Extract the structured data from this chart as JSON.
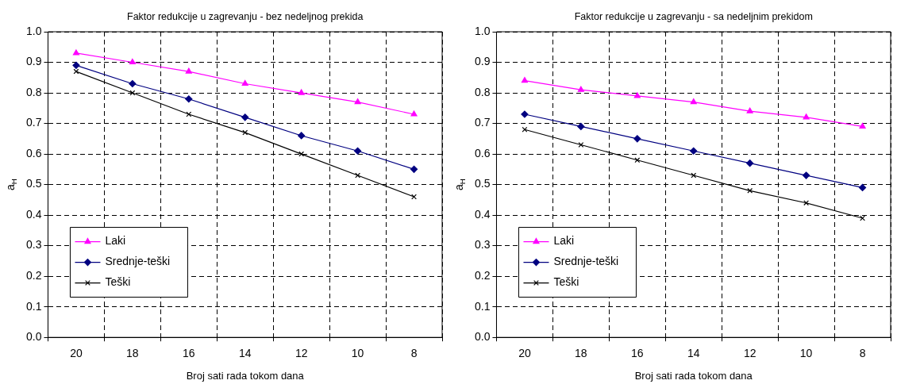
{
  "chart_data": [
    {
      "type": "line",
      "title": "Faktor redukcije u zagrevanju - bez nedeljnog prekida",
      "xlabel": "Broj sati rada tokom dana",
      "ylabel": "a$_{H}$",
      "categories": [
        "20",
        "18",
        "16",
        "14",
        "12",
        "10",
        "8"
      ],
      "ylim": [
        0,
        1
      ],
      "yticks": [
        {
          "value": 0,
          "label": "0.0"
        },
        {
          "value": 0.1,
          "label": "0.1"
        },
        {
          "value": 0.2,
          "label": "0.2"
        },
        {
          "value": 0.3,
          "label": "0.3"
        },
        {
          "value": 0.4,
          "label": "0.4"
        },
        {
          "value": 0.5,
          "label": "0.5"
        },
        {
          "value": 0.6,
          "label": "0.6"
        },
        {
          "value": 0.7,
          "label": "0.7"
        },
        {
          "value": 0.8,
          "label": "0.8"
        },
        {
          "value": 0.9,
          "label": "0.9"
        },
        {
          "value": 1,
          "label": "1.0"
        }
      ],
      "grid": true,
      "legend": "left",
      "line_style": "solid",
      "series": [
        {
          "name": "Laki",
          "color": "#ff00ff",
          "marker": "triangle",
          "values": [
            0.93,
            0.9,
            0.87,
            0.83,
            0.8,
            0.77,
            0.73
          ]
        },
        {
          "name": "Srednje-teški",
          "color": "#000080",
          "marker": "diamond",
          "values": [
            0.89,
            0.83,
            0.78,
            0.72,
            0.66,
            0.61,
            0.55
          ]
        },
        {
          "name": "Teški",
          "color": "#000000",
          "marker": "cross",
          "values": [
            0.87,
            0.8,
            0.73,
            0.67,
            0.6,
            0.53,
            0.46
          ]
        }
      ]
    },
    {
      "type": "line",
      "title": "Faktor redukcije u zagrevanju - sa nedeljnim prekidom",
      "xlabel": "Broj sati rada tokom dana",
      "ylabel": "a$_{H}$",
      "categories": [
        "20",
        "18",
        "16",
        "14",
        "12",
        "10",
        "8"
      ],
      "ylim": [
        0,
        1
      ],
      "yticks": [
        {
          "value": 0,
          "label": "0.0"
        },
        {
          "value": 0.1,
          "label": "0.1"
        },
        {
          "value": 0.2,
          "label": "0.2"
        },
        {
          "value": 0.3,
          "label": "0.3"
        },
        {
          "value": 0.4,
          "label": "0.4"
        },
        {
          "value": 0.5,
          "label": "0.5"
        },
        {
          "value": 0.6,
          "label": "0.6"
        },
        {
          "value": 0.7,
          "label": "0.7"
        },
        {
          "value": 0.8,
          "label": "0.8"
        },
        {
          "value": 0.9,
          "label": "0.9"
        },
        {
          "value": 1,
          "label": "1.0"
        }
      ],
      "grid": true,
      "legend": "left",
      "line_style": "solid",
      "series": [
        {
          "name": "Laki",
          "color": "#ff00ff",
          "marker": "triangle",
          "values": [
            0.84,
            0.81,
            0.79,
            0.77,
            0.74,
            0.72,
            0.69
          ]
        },
        {
          "name": "Srednje-teški",
          "color": "#000080",
          "marker": "diamond",
          "values": [
            0.73,
            0.69,
            0.65,
            0.61,
            0.57,
            0.53,
            0.49
          ]
        },
        {
          "name": "Teški",
          "color": "#000000",
          "marker": "cross",
          "values": [
            0.68,
            0.63,
            0.58,
            0.53,
            0.48,
            0.44,
            0.39
          ]
        }
      ]
    }
  ]
}
